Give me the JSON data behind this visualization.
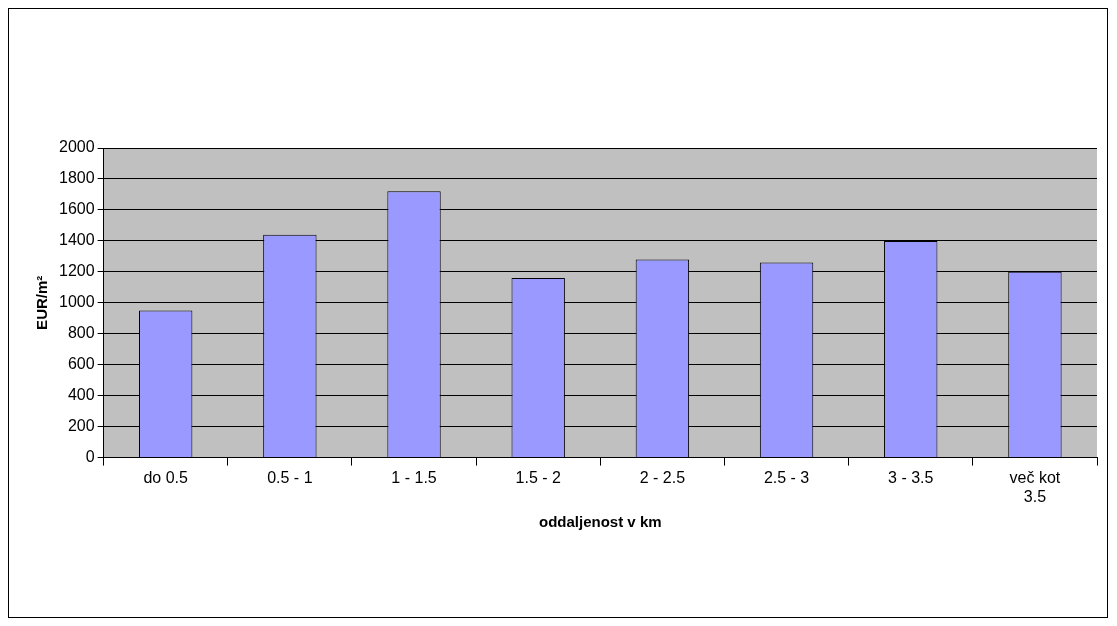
{
  "chart_data": {
    "type": "bar",
    "xlabel": "oddaljenost v km",
    "ylabel": "EUR/m²",
    "categories": [
      "do 0.5",
      "0.5 - 1",
      "1 - 1.5",
      "1.5 - 2",
      "2 - 2.5",
      "2.5 - 3",
      "3 - 3.5",
      "več kot 3.5"
    ],
    "values": [
      950,
      1440,
      1720,
      1160,
      1280,
      1260,
      1400,
      1200
    ],
    "color": "#9999ff",
    "ylim": [
      0,
      2000
    ],
    "yticks": [
      0,
      200,
      400,
      600,
      800,
      1000,
      1200,
      1400,
      1600,
      1800,
      2000
    ],
    "grid": "y",
    "legend": false
  }
}
